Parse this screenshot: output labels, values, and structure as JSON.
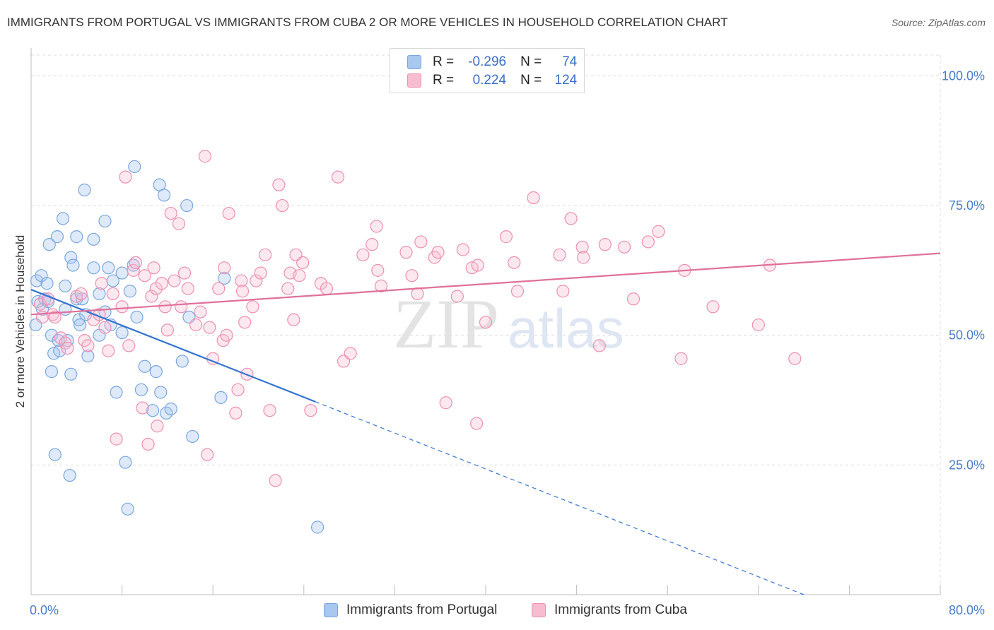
{
  "title": "IMMIGRANTS FROM PORTUGAL VS IMMIGRANTS FROM CUBA 2 OR MORE VEHICLES IN HOUSEHOLD CORRELATION CHART",
  "source": "Source: ZipAtlas.com",
  "watermark": {
    "zip": "ZIP",
    "atlas": "atlas"
  },
  "legend_stats": [
    {
      "r_label": "R =",
      "r_value": "-0.296",
      "n_label": "N =",
      "n_value": "74",
      "color": "#a9c8f0",
      "border": "#7aa6e0"
    },
    {
      "r_label": "R =",
      "r_value": "0.224",
      "n_label": "N =",
      "n_value": "124",
      "color": "#f8bcd0",
      "border": "#ee8fb0"
    }
  ],
  "bottom_legend": [
    {
      "label": "Immigrants from Portugal",
      "color": "#a9c8f0",
      "border": "#7aa6e0"
    },
    {
      "label": "Immigrants from Cuba",
      "color": "#f8bcd0",
      "border": "#ee8fb0"
    }
  ],
  "chart_data": {
    "type": "scatter",
    "xlabel": "",
    "ylabel": "2 or more Vehicles in Household",
    "xlim": [
      0,
      80
    ],
    "ylim": [
      0,
      104
    ],
    "x_ticks": [
      {
        "value": 0,
        "label": "0.0%"
      },
      {
        "value": 80,
        "label": "80.0%"
      }
    ],
    "y_ticks": [
      {
        "value": 25,
        "label": "25.0%"
      },
      {
        "value": 50,
        "label": "50.0%"
      },
      {
        "value": 75,
        "label": "75.0%"
      },
      {
        "value": 100,
        "label": "100.0%"
      }
    ],
    "grid": true,
    "series": [
      {
        "name": "Immigrants from Portugal",
        "color": "#7aa6e0",
        "fill": "rgba(160,195,240,0.35)",
        "trend": {
          "x0": 0,
          "y0": 58.8,
          "x1": 25,
          "y1": 37.2,
          "dash_to_x": 68,
          "dash_to_y": 0
        },
        "points": [
          [
            0.4,
            52
          ],
          [
            0.5,
            60.5
          ],
          [
            0.6,
            56.5
          ],
          [
            0.9,
            61.5
          ],
          [
            1.0,
            55
          ],
          [
            1.2,
            57
          ],
          [
            1.4,
            60
          ],
          [
            1.5,
            56.5
          ],
          [
            1.6,
            67.5
          ],
          [
            1.8,
            43
          ],
          [
            1.8,
            50
          ],
          [
            2.0,
            46.5
          ],
          [
            2.1,
            27
          ],
          [
            2.3,
            69
          ],
          [
            2.4,
            49
          ],
          [
            2.5,
            47
          ],
          [
            2.8,
            72.5
          ],
          [
            3.0,
            59.5
          ],
          [
            3.0,
            55
          ],
          [
            3.2,
            49
          ],
          [
            3.4,
            23
          ],
          [
            3.5,
            65
          ],
          [
            3.5,
            42.5
          ],
          [
            3.7,
            63.5
          ],
          [
            4.0,
            57
          ],
          [
            4.0,
            69
          ],
          [
            4.2,
            53
          ],
          [
            4.3,
            52
          ],
          [
            4.5,
            57
          ],
          [
            4.7,
            78
          ],
          [
            4.8,
            54
          ],
          [
            5.0,
            46
          ],
          [
            5.5,
            68.5
          ],
          [
            5.5,
            63
          ],
          [
            6.0,
            50
          ],
          [
            6.0,
            58
          ],
          [
            6.5,
            72
          ],
          [
            6.5,
            54.5
          ],
          [
            6.8,
            63
          ],
          [
            7.0,
            52
          ],
          [
            7.2,
            60.5
          ],
          [
            7.5,
            39
          ],
          [
            8.0,
            62
          ],
          [
            8.0,
            50.5
          ],
          [
            8.3,
            25.5
          ],
          [
            8.5,
            16.5
          ],
          [
            8.7,
            58.5
          ],
          [
            9.0,
            63.5
          ],
          [
            9.1,
            82.5
          ],
          [
            9.3,
            53.5
          ],
          [
            9.7,
            39.5
          ],
          [
            10.0,
            44
          ],
          [
            10.7,
            35.5
          ],
          [
            11.0,
            43
          ],
          [
            11.3,
            79
          ],
          [
            11.4,
            39
          ],
          [
            11.7,
            77
          ],
          [
            11.9,
            35
          ],
          [
            12.3,
            35.8
          ],
          [
            13.3,
            45
          ],
          [
            13.7,
            75
          ],
          [
            13.9,
            53.5
          ],
          [
            14.2,
            30.5
          ],
          [
            16.7,
            38
          ],
          [
            17.0,
            61
          ],
          [
            25.2,
            13
          ]
        ]
      },
      {
        "name": "Immigrants from Cuba",
        "color": "#ee8fb0",
        "fill": "rgba(248,188,208,0.35)",
        "trend": {
          "x0": 0,
          "y0": 54.0,
          "x1": 80,
          "y1": 65.8
        },
        "points": [
          [
            0.8,
            56
          ],
          [
            1.0,
            53.5
          ],
          [
            1.5,
            57
          ],
          [
            1.9,
            54
          ],
          [
            2.1,
            53.5
          ],
          [
            2.6,
            49.5
          ],
          [
            3.0,
            48.5
          ],
          [
            3.2,
            47.5
          ],
          [
            4.0,
            57.5
          ],
          [
            4.4,
            58
          ],
          [
            4.7,
            49
          ],
          [
            5.0,
            48
          ],
          [
            5.5,
            53
          ],
          [
            6.0,
            54
          ],
          [
            6.2,
            60
          ],
          [
            6.5,
            51.5
          ],
          [
            6.8,
            47
          ],
          [
            7.2,
            58
          ],
          [
            7.5,
            30
          ],
          [
            8.0,
            55.5
          ],
          [
            8.3,
            80.5
          ],
          [
            8.6,
            48
          ],
          [
            9.0,
            62.5
          ],
          [
            9.2,
            64
          ],
          [
            9.8,
            36
          ],
          [
            10.0,
            61.5
          ],
          [
            10.3,
            29
          ],
          [
            10.6,
            57.5
          ],
          [
            10.8,
            63
          ],
          [
            11.0,
            59
          ],
          [
            11.1,
            32.5
          ],
          [
            11.5,
            60
          ],
          [
            11.8,
            55.5
          ],
          [
            12.0,
            51
          ],
          [
            12.3,
            73.5
          ],
          [
            12.6,
            60.5
          ],
          [
            13.0,
            71.5
          ],
          [
            13.2,
            55.5
          ],
          [
            13.5,
            62
          ],
          [
            13.8,
            59
          ],
          [
            14.5,
            52
          ],
          [
            14.9,
            54.5
          ],
          [
            15.3,
            84.5
          ],
          [
            15.5,
            27
          ],
          [
            15.7,
            51.5
          ],
          [
            16.0,
            45.5
          ],
          [
            16.5,
            59
          ],
          [
            16.9,
            49
          ],
          [
            17.0,
            63
          ],
          [
            17.2,
            50
          ],
          [
            17.4,
            73.5
          ],
          [
            18.0,
            35
          ],
          [
            18.2,
            39.5
          ],
          [
            18.5,
            60.5
          ],
          [
            18.6,
            58.5
          ],
          [
            18.8,
            52.5
          ],
          [
            19.0,
            42.5
          ],
          [
            19.5,
            55.5
          ],
          [
            19.8,
            60.5
          ],
          [
            20.2,
            62
          ],
          [
            20.6,
            65.5
          ],
          [
            21.0,
            35.5
          ],
          [
            21.5,
            22
          ],
          [
            21.8,
            79
          ],
          [
            22.1,
            75
          ],
          [
            22.6,
            59
          ],
          [
            22.8,
            62
          ],
          [
            23.1,
            53
          ],
          [
            23.3,
            65.5
          ],
          [
            23.6,
            61.5
          ],
          [
            23.9,
            64
          ],
          [
            24.6,
            35.5
          ],
          [
            25.5,
            60
          ],
          [
            26.0,
            59
          ],
          [
            27.0,
            80.5
          ],
          [
            27.5,
            45
          ],
          [
            28.1,
            46.5
          ],
          [
            29.2,
            65.5
          ],
          [
            30.0,
            67.5
          ],
          [
            30.4,
            71
          ],
          [
            30.5,
            62.5
          ],
          [
            30.8,
            59.5
          ],
          [
            33.0,
            66
          ],
          [
            33.5,
            61.5
          ],
          [
            34.0,
            58
          ],
          [
            34.3,
            68
          ],
          [
            35.5,
            65
          ],
          [
            35.8,
            66
          ],
          [
            36.5,
            37
          ],
          [
            37.5,
            57.5
          ],
          [
            38.0,
            66.5
          ],
          [
            38.8,
            63
          ],
          [
            39.2,
            33
          ],
          [
            39.3,
            63.5
          ],
          [
            40.0,
            52.5
          ],
          [
            41.8,
            69
          ],
          [
            42.5,
            64
          ],
          [
            42.8,
            58.5
          ],
          [
            44.2,
            76.5
          ],
          [
            46.5,
            65.5
          ],
          [
            46.8,
            58.5
          ],
          [
            47.5,
            72.5
          ],
          [
            48.5,
            67
          ],
          [
            48.6,
            65
          ],
          [
            50.0,
            48
          ],
          [
            50.5,
            67.5
          ],
          [
            52.2,
            67
          ],
          [
            53.0,
            57
          ],
          [
            54.3,
            68
          ],
          [
            55.2,
            70
          ],
          [
            57.2,
            45.5
          ],
          [
            57.5,
            62.5
          ],
          [
            60.0,
            55.5
          ],
          [
            64.0,
            52
          ],
          [
            65.0,
            63.5
          ],
          [
            67.2,
            45.5
          ]
        ]
      }
    ]
  }
}
